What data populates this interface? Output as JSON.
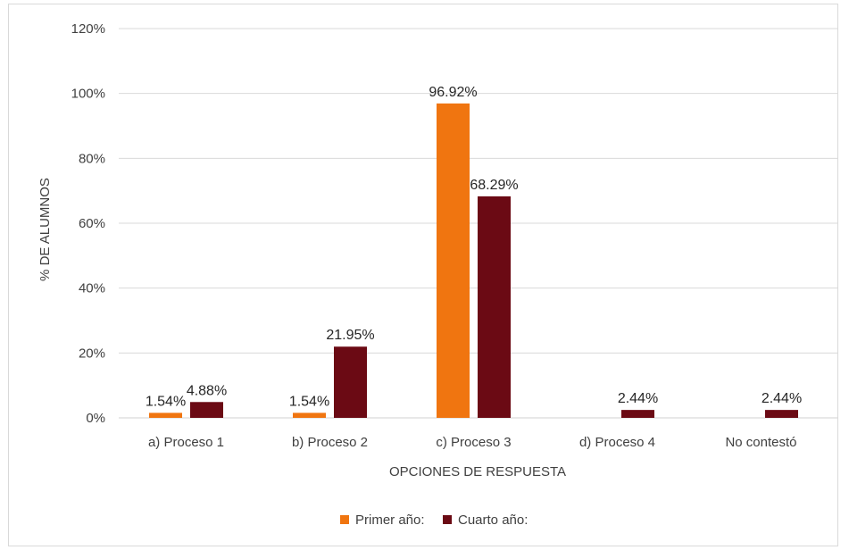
{
  "chart_data": {
    "type": "bar",
    "categories": [
      "a) Proceso 1",
      "b) Proceso 2",
      "c) Proceso 3",
      "d) Proceso 4",
      "No contestó"
    ],
    "series": [
      {
        "name": "Primer año:",
        "color": "#f07510",
        "values": [
          1.54,
          1.54,
          96.92,
          null,
          null
        ],
        "labels": [
          "1.54%",
          "1.54%",
          "96.92%",
          "",
          ""
        ]
      },
      {
        "name": "Cuarto año:",
        "color": "#6b0a14",
        "values": [
          4.88,
          21.95,
          68.29,
          2.44,
          2.44
        ],
        "labels": [
          "4.88%",
          "21.95%",
          "68.29%",
          "2.44%",
          "2.44%"
        ]
      }
    ],
    "xlabel": "OPCIONES DE RESPUESTA",
    "ylabel": "% DE ALUMNOS",
    "ylim": [
      0,
      120
    ],
    "yticks": [
      "0%",
      "20%",
      "40%",
      "60%",
      "80%",
      "100%",
      "120%"
    ],
    "grid": true,
    "legend_position": "bottom"
  }
}
